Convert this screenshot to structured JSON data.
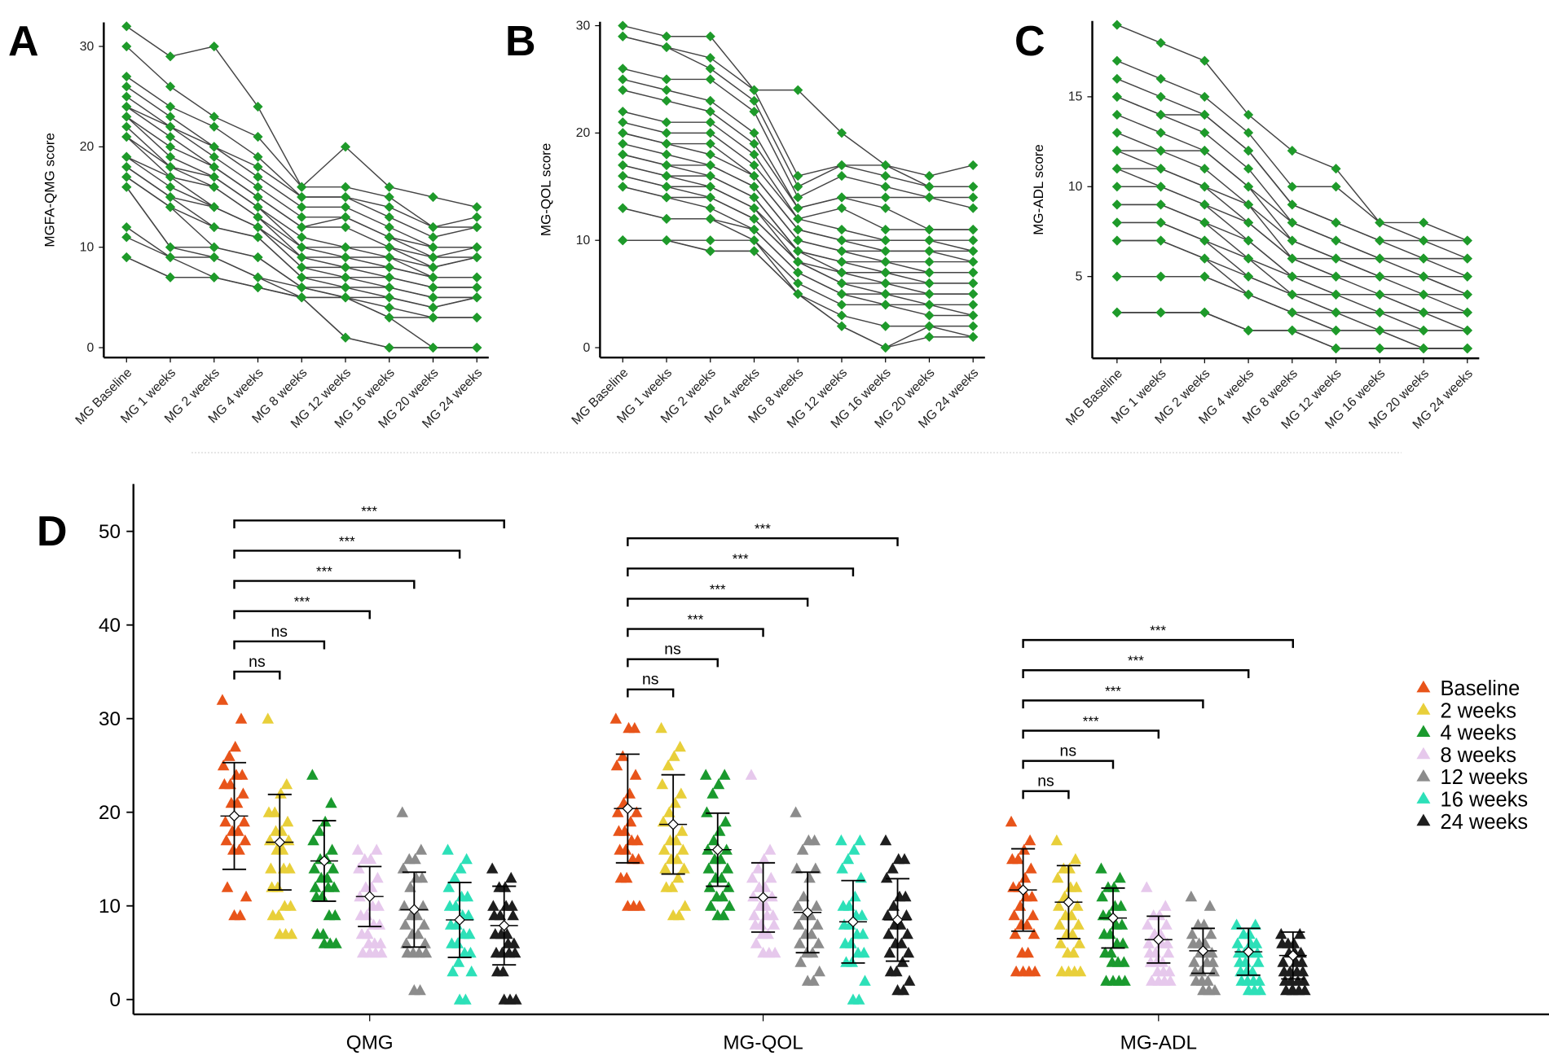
{
  "chart_data": [
    {
      "panel": "A",
      "type": "line",
      "ylabel": "MGFA-QMG score",
      "ylim": [
        0,
        32
      ],
      "yticks": [
        0,
        10,
        20,
        30
      ],
      "categories": [
        "MG Baseline",
        "MG 1 weeks",
        "MG 2 weeks",
        "MG 4 weeks",
        "MG 8 weeks",
        "MG 12 weeks",
        "MG 16 weeks",
        "MG 20 weeks",
        "MG 24 weeks"
      ],
      "values": [
        [
          32,
          30,
          27,
          26,
          25,
          24,
          24,
          23,
          23,
          22,
          21,
          21,
          19,
          19,
          18,
          18,
          17,
          17,
          16,
          16,
          12,
          11,
          9,
          9
        ],
        [
          29,
          26,
          24,
          23,
          22,
          22,
          21,
          20,
          19,
          18,
          18,
          17,
          17,
          16,
          15,
          15,
          14,
          14,
          10,
          10,
          9,
          9,
          7,
          7
        ],
        [
          30,
          23,
          22,
          20,
          20,
          19,
          18,
          18,
          17,
          17,
          16,
          16,
          14,
          14,
          14,
          12,
          12,
          10,
          10,
          9,
          9,
          7,
          7,
          7
        ],
        [
          24,
          21,
          19,
          18,
          17,
          16,
          15,
          15,
          14,
          14,
          13,
          13,
          12,
          12,
          12,
          11,
          11,
          9,
          9,
          7,
          7,
          6,
          6,
          6
        ],
        [
          16,
          16,
          15,
          15,
          14,
          13,
          12,
          12,
          11,
          10,
          10,
          9,
          9,
          8,
          8,
          7,
          7,
          6,
          6,
          6,
          5,
          5,
          5,
          5
        ],
        [
          20,
          16,
          15,
          15,
          14,
          13,
          13,
          12,
          10,
          10,
          9,
          9,
          8,
          8,
          7,
          7,
          6,
          6,
          5,
          5,
          5,
          5,
          1,
          1
        ],
        [
          16,
          15,
          14,
          13,
          12,
          11,
          11,
          10,
          10,
          9,
          9,
          8,
          8,
          7,
          7,
          6,
          6,
          5,
          5,
          4,
          3,
          3,
          0,
          0
        ],
        [
          15,
          12,
          12,
          11,
          10,
          10,
          9,
          9,
          8,
          8,
          7,
          7,
          7,
          6,
          6,
          5,
          5,
          4,
          4,
          3,
          3,
          0,
          0,
          0
        ],
        [
          14,
          13,
          12,
          12,
          10,
          10,
          10,
          9,
          9,
          9,
          7,
          7,
          7,
          6,
          6,
          5,
          5,
          5,
          5,
          3,
          3,
          0,
          0,
          0
        ]
      ]
    },
    {
      "panel": "B",
      "type": "line",
      "ylabel": "MG-QOL score",
      "ylim": [
        0,
        30
      ],
      "yticks": [
        0,
        10,
        20,
        30
      ],
      "categories": [
        "MG Baseline",
        "MG 1 weeks",
        "MG 2 weeks",
        "MG 4 weeks",
        "MG 8 weeks",
        "MG 12 weeks",
        "MG 16 weeks",
        "MG 20 weeks",
        "MG 24 weeks"
      ],
      "values": [
        [
          30,
          29,
          29,
          26,
          25,
          24,
          22,
          21,
          20,
          20,
          19,
          18,
          18,
          17,
          17,
          16,
          16,
          15,
          15,
          13,
          13,
          10,
          10,
          10
        ],
        [
          29,
          28,
          28,
          25,
          24,
          23,
          21,
          20,
          19,
          19,
          18,
          17,
          17,
          16,
          16,
          15,
          15,
          14,
          14,
          12,
          12,
          10,
          10,
          10
        ],
        [
          29,
          27,
          26,
          25,
          23,
          22,
          21,
          20,
          19,
          18,
          17,
          17,
          16,
          16,
          15,
          15,
          14,
          14,
          13,
          12,
          12,
          10,
          9,
          9
        ],
        [
          24,
          24,
          23,
          22,
          20,
          19,
          18,
          17,
          16,
          16,
          15,
          15,
          14,
          14,
          13,
          13,
          12,
          12,
          11,
          11,
          10,
          10,
          9,
          9
        ],
        [
          24,
          16,
          15,
          14,
          13,
          13,
          12,
          12,
          11,
          11,
          10,
          10,
          9,
          9,
          9,
          8,
          8,
          8,
          7,
          7,
          6,
          5,
          5,
          5
        ],
        [
          20,
          17,
          17,
          16,
          14,
          14,
          13,
          11,
          10,
          10,
          9,
          9,
          8,
          8,
          7,
          7,
          6,
          6,
          5,
          5,
          4,
          3,
          2,
          2
        ],
        [
          17,
          17,
          16,
          15,
          14,
          13,
          11,
          10,
          10,
          9,
          9,
          8,
          8,
          7,
          7,
          6,
          6,
          5,
          5,
          4,
          4,
          2,
          0,
          0
        ],
        [
          16,
          15,
          15,
          14,
          14,
          11,
          11,
          10,
          10,
          9,
          9,
          8,
          7,
          7,
          6,
          6,
          5,
          5,
          4,
          4,
          3,
          2,
          2,
          1
        ],
        [
          17,
          15,
          15,
          14,
          13,
          11,
          11,
          10,
          9,
          9,
          8,
          8,
          7,
          7,
          6,
          6,
          5,
          5,
          4,
          3,
          3,
          2,
          1,
          1
        ]
      ]
    },
    {
      "panel": "C",
      "type": "line",
      "ylabel": "MG-ADL score",
      "ylim": [
        1,
        19
      ],
      "yticks": [
        5,
        10,
        15
      ],
      "categories": [
        "MG Baseline",
        "MG 1 weeks",
        "MG 2 weeks",
        "MG 4 weeks",
        "MG 8 weeks",
        "MG 12 weeks",
        "MG 16 weeks",
        "MG 20 weeks",
        "MG 24 weeks"
      ],
      "values": [
        [
          19,
          17,
          16,
          15,
          15,
          14,
          13,
          12,
          12,
          11,
          11,
          10,
          9,
          9,
          8,
          8,
          7,
          7,
          5,
          5,
          3,
          3,
          3,
          3
        ],
        [
          18,
          16,
          15,
          14,
          14,
          13,
          12,
          12,
          11,
          11,
          10,
          10,
          9,
          9,
          8,
          8,
          7,
          7,
          5,
          5,
          3,
          3,
          3,
          3
        ],
        [
          17,
          15,
          14,
          14,
          13,
          12,
          12,
          11,
          10,
          10,
          9,
          9,
          8,
          8,
          7,
          7,
          6,
          6,
          5,
          5,
          3,
          3,
          3,
          3
        ],
        [
          14,
          13,
          12,
          12,
          11,
          10,
          10,
          9,
          9,
          8,
          8,
          7,
          7,
          6,
          6,
          5,
          5,
          4,
          4,
          4,
          2,
          2,
          2,
          2
        ],
        [
          12,
          10,
          9,
          9,
          8,
          8,
          7,
          7,
          6,
          6,
          6,
          5,
          5,
          5,
          4,
          4,
          4,
          3,
          3,
          3,
          2,
          2,
          2,
          2
        ],
        [
          11,
          10,
          8,
          8,
          7,
          7,
          6,
          6,
          6,
          5,
          5,
          5,
          4,
          4,
          4,
          3,
          3,
          3,
          2,
          2,
          2,
          1,
          1,
          1
        ],
        [
          8,
          8,
          7,
          7,
          6,
          6,
          6,
          5,
          5,
          5,
          5,
          4,
          4,
          4,
          3,
          3,
          3,
          2,
          2,
          2,
          2,
          1,
          1,
          1
        ],
        [
          8,
          7,
          7,
          6,
          6,
          6,
          5,
          5,
          5,
          5,
          4,
          4,
          3,
          3,
          3,
          3,
          2,
          2,
          2,
          1,
          1,
          1,
          1,
          1
        ],
        [
          7,
          7,
          6,
          6,
          6,
          5,
          5,
          5,
          4,
          4,
          4,
          3,
          3,
          3,
          3,
          2,
          2,
          2,
          2,
          1,
          1,
          1,
          1,
          1
        ]
      ]
    },
    {
      "panel": "D",
      "type": "scatter",
      "ylim": [
        0,
        50
      ],
      "yticks": [
        0,
        10,
        20,
        30,
        40,
        50
      ],
      "categories": [
        "QMG",
        "MG-QOL",
        "MG-ADL"
      ],
      "legend_position": "right",
      "series": [
        {
          "name": "Baseline",
          "color": "#e8541a",
          "mean": [
            19.6,
            20.4,
            11.7
          ],
          "sd": [
            5.7,
            5.8,
            4.4
          ]
        },
        {
          "name": "2 weeks",
          "color": "#e8cf3a",
          "mean": [
            16.8,
            18.7,
            10.4
          ],
          "sd": [
            5.1,
            5.3,
            3.9
          ]
        },
        {
          "name": "4 weeks",
          "color": "#1a9a2e",
          "mean": [
            14.8,
            16.0,
            8.7
          ],
          "sd": [
            4.3,
            3.9,
            3.2
          ]
        },
        {
          "name": "8 weeks",
          "color": "#e6c8ec",
          "mean": [
            11.0,
            10.9,
            6.4
          ],
          "sd": [
            3.2,
            3.7,
            2.5
          ]
        },
        {
          "name": "12 weeks",
          "color": "#8c8c8c",
          "mean": [
            9.6,
            9.3,
            5.2
          ],
          "sd": [
            4.0,
            4.3,
            2.4
          ]
        },
        {
          "name": "16 weeks",
          "color": "#2de0b8",
          "mean": [
            8.5,
            8.3,
            5.1
          ],
          "sd": [
            4.0,
            4.4,
            2.5
          ]
        },
        {
          "name": "24 weeks",
          "color": "#1e1e1e",
          "mean": [
            7.9,
            8.5,
            4.7
          ],
          "sd": [
            4.2,
            4.4,
            2.5
          ]
        }
      ],
      "comparisons": [
        "ns",
        "ns",
        "***",
        "***",
        "***",
        "***"
      ]
    }
  ],
  "panel_labels": [
    "A",
    "B",
    "C",
    "D"
  ],
  "point_color": "#1e9a2a",
  "line_color": "#444444"
}
